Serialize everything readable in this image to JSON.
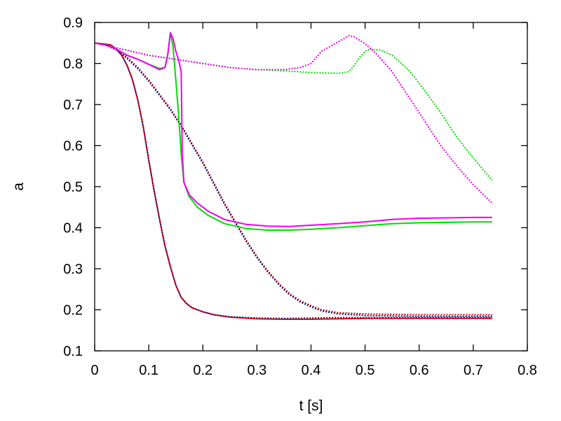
{
  "chart_data": {
    "type": "line",
    "xlabel": "t [s]",
    "ylabel": "a",
    "xlim": [
      0,
      0.8
    ],
    "ylim": [
      0.1,
      0.9
    ],
    "xticks": [
      "0",
      "0.1",
      "0.2",
      "0.3",
      "0.4",
      "0.5",
      "0.6",
      "0.7",
      "0.8"
    ],
    "yticks": [
      "0.1",
      "0.2",
      "0.3",
      "0.4",
      "0.5",
      "0.6",
      "0.7",
      "0.8",
      "0.9"
    ],
    "grid": false,
    "legend": "none",
    "series": [
      {
        "color": "#ff0000",
        "style": "solid",
        "points": [
          [
            0,
            0.85
          ],
          [
            0.02,
            0.847
          ],
          [
            0.03,
            0.845
          ],
          [
            0.04,
            0.835
          ],
          [
            0.05,
            0.82
          ],
          [
            0.06,
            0.795
          ],
          [
            0.07,
            0.76
          ],
          [
            0.08,
            0.71
          ],
          [
            0.09,
            0.645
          ],
          [
            0.1,
            0.565
          ],
          [
            0.11,
            0.49
          ],
          [
            0.12,
            0.42
          ],
          [
            0.13,
            0.355
          ],
          [
            0.14,
            0.305
          ],
          [
            0.15,
            0.26
          ],
          [
            0.16,
            0.23
          ],
          [
            0.17,
            0.215
          ],
          [
            0.18,
            0.205
          ],
          [
            0.2,
            0.195
          ],
          [
            0.22,
            0.188
          ],
          [
            0.25,
            0.182
          ],
          [
            0.3,
            0.178
          ],
          [
            0.35,
            0.177
          ],
          [
            0.4,
            0.177
          ],
          [
            0.45,
            0.178
          ],
          [
            0.5,
            0.179
          ],
          [
            0.55,
            0.179
          ],
          [
            0.6,
            0.179
          ],
          [
            0.65,
            0.179
          ],
          [
            0.7,
            0.179
          ],
          [
            0.735,
            0.179
          ]
        ]
      },
      {
        "color": "#1a1a80",
        "style": "dotted",
        "points": [
          [
            0,
            0.85
          ],
          [
            0.02,
            0.847
          ],
          [
            0.03,
            0.845
          ],
          [
            0.04,
            0.835
          ],
          [
            0.05,
            0.82
          ],
          [
            0.06,
            0.795
          ],
          [
            0.07,
            0.76
          ],
          [
            0.08,
            0.71
          ],
          [
            0.09,
            0.645
          ],
          [
            0.1,
            0.565
          ],
          [
            0.11,
            0.49
          ],
          [
            0.12,
            0.42
          ],
          [
            0.13,
            0.355
          ],
          [
            0.14,
            0.305
          ],
          [
            0.15,
            0.26
          ],
          [
            0.16,
            0.23
          ],
          [
            0.17,
            0.215
          ],
          [
            0.18,
            0.205
          ],
          [
            0.2,
            0.195
          ],
          [
            0.22,
            0.188
          ],
          [
            0.25,
            0.183
          ],
          [
            0.3,
            0.18
          ],
          [
            0.35,
            0.179
          ],
          [
            0.4,
            0.18
          ],
          [
            0.45,
            0.181
          ],
          [
            0.5,
            0.181
          ],
          [
            0.55,
            0.181
          ],
          [
            0.6,
            0.181
          ],
          [
            0.65,
            0.181
          ],
          [
            0.7,
            0.181
          ],
          [
            0.735,
            0.181
          ]
        ]
      },
      {
        "color": "#cc0000",
        "style": "dotted",
        "points": [
          [
            0,
            0.85
          ],
          [
            0.02,
            0.845
          ],
          [
            0.04,
            0.835
          ],
          [
            0.06,
            0.815
          ],
          [
            0.08,
            0.79
          ],
          [
            0.1,
            0.76
          ],
          [
            0.12,
            0.725
          ],
          [
            0.14,
            0.69
          ],
          [
            0.16,
            0.65
          ],
          [
            0.18,
            0.605
          ],
          [
            0.2,
            0.56
          ],
          [
            0.22,
            0.51
          ],
          [
            0.24,
            0.46
          ],
          [
            0.26,
            0.415
          ],
          [
            0.28,
            0.37
          ],
          [
            0.3,
            0.33
          ],
          [
            0.32,
            0.295
          ],
          [
            0.34,
            0.265
          ],
          [
            0.36,
            0.24
          ],
          [
            0.38,
            0.222
          ],
          [
            0.4,
            0.21
          ],
          [
            0.42,
            0.2
          ],
          [
            0.45,
            0.193
          ],
          [
            0.5,
            0.19
          ],
          [
            0.6,
            0.188
          ],
          [
            0.7,
            0.188
          ],
          [
            0.735,
            0.188
          ]
        ]
      },
      {
        "color": "#1a1a80",
        "style": "dotted",
        "points": [
          [
            0,
            0.85
          ],
          [
            0.02,
            0.845
          ],
          [
            0.04,
            0.833
          ],
          [
            0.06,
            0.812
          ],
          [
            0.08,
            0.787
          ],
          [
            0.1,
            0.757
          ],
          [
            0.12,
            0.722
          ],
          [
            0.14,
            0.687
          ],
          [
            0.16,
            0.647
          ],
          [
            0.18,
            0.602
          ],
          [
            0.2,
            0.557
          ],
          [
            0.22,
            0.507
          ],
          [
            0.24,
            0.457
          ],
          [
            0.26,
            0.412
          ],
          [
            0.28,
            0.367
          ],
          [
            0.3,
            0.327
          ],
          [
            0.32,
            0.292
          ],
          [
            0.34,
            0.262
          ],
          [
            0.36,
            0.237
          ],
          [
            0.38,
            0.219
          ],
          [
            0.4,
            0.207
          ],
          [
            0.42,
            0.197
          ],
          [
            0.45,
            0.19
          ],
          [
            0.5,
            0.186
          ],
          [
            0.6,
            0.184
          ],
          [
            0.7,
            0.184
          ],
          [
            0.735,
            0.184
          ]
        ]
      },
      {
        "color": "#00dd00",
        "style": "solid",
        "points": [
          [
            0,
            0.85
          ],
          [
            0.02,
            0.845
          ],
          [
            0.04,
            0.835
          ],
          [
            0.06,
            0.82
          ],
          [
            0.08,
            0.81
          ],
          [
            0.1,
            0.798
          ],
          [
            0.12,
            0.788
          ],
          [
            0.13,
            0.79
          ],
          [
            0.135,
            0.82
          ],
          [
            0.14,
            0.875
          ],
          [
            0.145,
            0.84
          ],
          [
            0.15,
            0.76
          ],
          [
            0.155,
            0.68
          ],
          [
            0.16,
            0.58
          ],
          [
            0.165,
            0.51
          ],
          [
            0.175,
            0.475
          ],
          [
            0.19,
            0.45
          ],
          [
            0.21,
            0.43
          ],
          [
            0.24,
            0.41
          ],
          [
            0.28,
            0.398
          ],
          [
            0.32,
            0.394
          ],
          [
            0.36,
            0.394
          ],
          [
            0.4,
            0.396
          ],
          [
            0.45,
            0.4
          ],
          [
            0.5,
            0.405
          ],
          [
            0.55,
            0.41
          ],
          [
            0.6,
            0.412
          ],
          [
            0.65,
            0.413
          ],
          [
            0.7,
            0.414
          ],
          [
            0.735,
            0.414
          ]
        ]
      },
      {
        "color": "#ee00ee",
        "style": "solid",
        "points": [
          [
            0,
            0.85
          ],
          [
            0.02,
            0.845
          ],
          [
            0.04,
            0.835
          ],
          [
            0.06,
            0.82
          ],
          [
            0.08,
            0.81
          ],
          [
            0.1,
            0.798
          ],
          [
            0.12,
            0.785
          ],
          [
            0.13,
            0.79
          ],
          [
            0.135,
            0.82
          ],
          [
            0.14,
            0.875
          ],
          [
            0.145,
            0.86
          ],
          [
            0.15,
            0.83
          ],
          [
            0.155,
            0.81
          ],
          [
            0.16,
            0.78
          ],
          [
            0.162,
            0.58
          ],
          [
            0.165,
            0.51
          ],
          [
            0.175,
            0.48
          ],
          [
            0.19,
            0.46
          ],
          [
            0.21,
            0.44
          ],
          [
            0.24,
            0.42
          ],
          [
            0.28,
            0.408
          ],
          [
            0.32,
            0.404
          ],
          [
            0.36,
            0.403
          ],
          [
            0.4,
            0.406
          ],
          [
            0.45,
            0.41
          ],
          [
            0.5,
            0.414
          ],
          [
            0.55,
            0.42
          ],
          [
            0.6,
            0.423
          ],
          [
            0.65,
            0.424
          ],
          [
            0.7,
            0.425
          ],
          [
            0.735,
            0.425
          ]
        ]
      },
      {
        "color": "#00dd00",
        "style": "dotted",
        "points": [
          [
            0,
            0.85
          ],
          [
            0.05,
            0.835
          ],
          [
            0.1,
            0.82
          ],
          [
            0.15,
            0.81
          ],
          [
            0.2,
            0.8
          ],
          [
            0.25,
            0.79
          ],
          [
            0.3,
            0.785
          ],
          [
            0.35,
            0.782
          ],
          [
            0.4,
            0.778
          ],
          [
            0.45,
            0.776
          ],
          [
            0.47,
            0.78
          ],
          [
            0.48,
            0.795
          ],
          [
            0.49,
            0.815
          ],
          [
            0.5,
            0.83
          ],
          [
            0.51,
            0.835
          ],
          [
            0.53,
            0.832
          ],
          [
            0.55,
            0.82
          ],
          [
            0.58,
            0.785
          ],
          [
            0.61,
            0.735
          ],
          [
            0.64,
            0.68
          ],
          [
            0.67,
            0.62
          ],
          [
            0.7,
            0.57
          ],
          [
            0.735,
            0.515
          ]
        ]
      },
      {
        "color": "#ee00ee",
        "style": "dotted",
        "points": [
          [
            0,
            0.85
          ],
          [
            0.05,
            0.835
          ],
          [
            0.1,
            0.82
          ],
          [
            0.15,
            0.81
          ],
          [
            0.2,
            0.8
          ],
          [
            0.25,
            0.79
          ],
          [
            0.3,
            0.785
          ],
          [
            0.35,
            0.785
          ],
          [
            0.38,
            0.79
          ],
          [
            0.4,
            0.8
          ],
          [
            0.42,
            0.83
          ],
          [
            0.44,
            0.845
          ],
          [
            0.46,
            0.86
          ],
          [
            0.47,
            0.868
          ],
          [
            0.48,
            0.865
          ],
          [
            0.5,
            0.848
          ],
          [
            0.52,
            0.825
          ],
          [
            0.55,
            0.78
          ],
          [
            0.58,
            0.72
          ],
          [
            0.61,
            0.66
          ],
          [
            0.64,
            0.6
          ],
          [
            0.67,
            0.55
          ],
          [
            0.7,
            0.505
          ],
          [
            0.735,
            0.46
          ]
        ]
      }
    ]
  }
}
